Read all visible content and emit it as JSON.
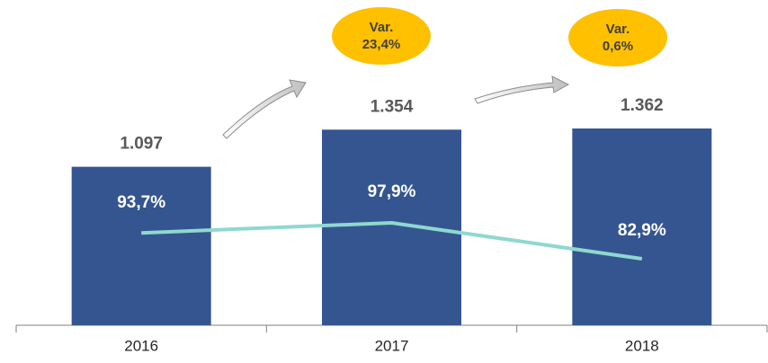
{
  "chart_data": {
    "type": "bar",
    "categories": [
      "2016",
      "2017",
      "2018"
    ],
    "series": [
      {
        "name": null,
        "type": "bar",
        "color": "#355590",
        "values": [
          1097,
          1354,
          1362
        ],
        "value_labels": [
          "1.097",
          "1.354",
          "1.362"
        ]
      },
      {
        "name": null,
        "type": "line",
        "color": "#8fd8cf",
        "values": [
          93.7,
          97.9,
          82.9
        ],
        "value_labels": [
          "93,7%",
          "97,9%",
          "82,9%"
        ]
      }
    ],
    "annotations": [
      {
        "lines": [
          "Var.",
          "23,4%"
        ],
        "color": "#ffc000"
      },
      {
        "lines": [
          "Var.",
          "0,6%"
        ],
        "color": "#ffc000"
      }
    ]
  }
}
